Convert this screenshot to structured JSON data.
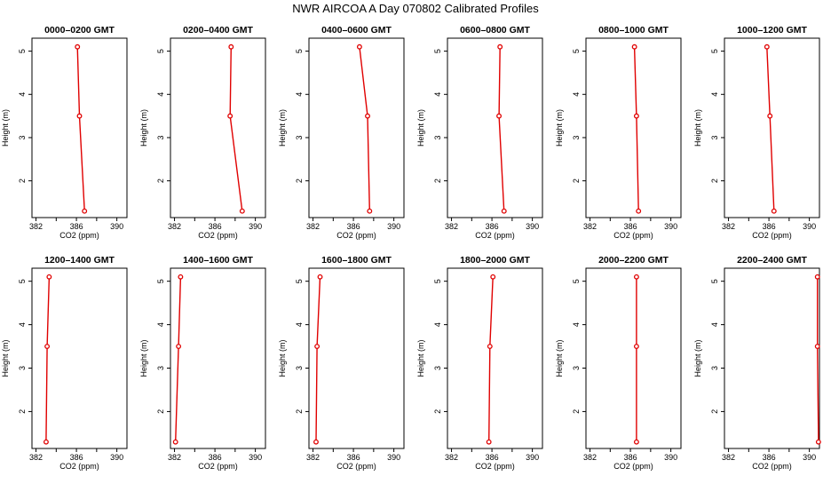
{
  "title": "NWR AIRCOA A  Day 070802  Calibrated Profiles",
  "colors": {
    "series": "#e00000",
    "axis": "#000000",
    "background": "#ffffff"
  },
  "chart_data": {
    "type": "line",
    "xlabel": "CO2 (ppm)",
    "ylabel": "Height (m)",
    "xlim": [
      381.6,
      391.0
    ],
    "ylim": [
      1.15,
      5.3
    ],
    "xticks": [
      382,
      386,
      390
    ],
    "xminor": [
      384,
      388
    ],
    "yticks": [
      2,
      3,
      4,
      5
    ],
    "heights": [
      1.3,
      3.5,
      5.1
    ],
    "panels": [
      {
        "title": "0000–0200 GMT",
        "co2": [
          386.8,
          386.3,
          386.1
        ]
      },
      {
        "title": "0200–0400 GMT",
        "co2": [
          388.7,
          387.5,
          387.6
        ]
      },
      {
        "title": "0400–0600 GMT",
        "co2": [
          387.6,
          387.4,
          386.6
        ]
      },
      {
        "title": "0600–0800 GMT",
        "co2": [
          387.2,
          386.7,
          386.8
        ]
      },
      {
        "title": "0800–1000 GMT",
        "co2": [
          386.8,
          386.6,
          386.4
        ]
      },
      {
        "title": "1000–1200 GMT",
        "co2": [
          386.5,
          386.1,
          385.8
        ]
      },
      {
        "title": "1200–1400 GMT",
        "co2": [
          383.0,
          383.1,
          383.3
        ]
      },
      {
        "title": "1400–1600 GMT",
        "co2": [
          382.1,
          382.4,
          382.6
        ]
      },
      {
        "title": "1600–1800 GMT",
        "co2": [
          382.3,
          382.4,
          382.7
        ]
      },
      {
        "title": "1800–2000 GMT",
        "co2": [
          385.7,
          385.8,
          386.1
        ]
      },
      {
        "title": "2000–2200 GMT",
        "co2": [
          386.6,
          386.6,
          386.6
        ]
      },
      {
        "title": "2200–2400 GMT",
        "co2": [
          390.9,
          390.8,
          390.8
        ]
      }
    ]
  }
}
